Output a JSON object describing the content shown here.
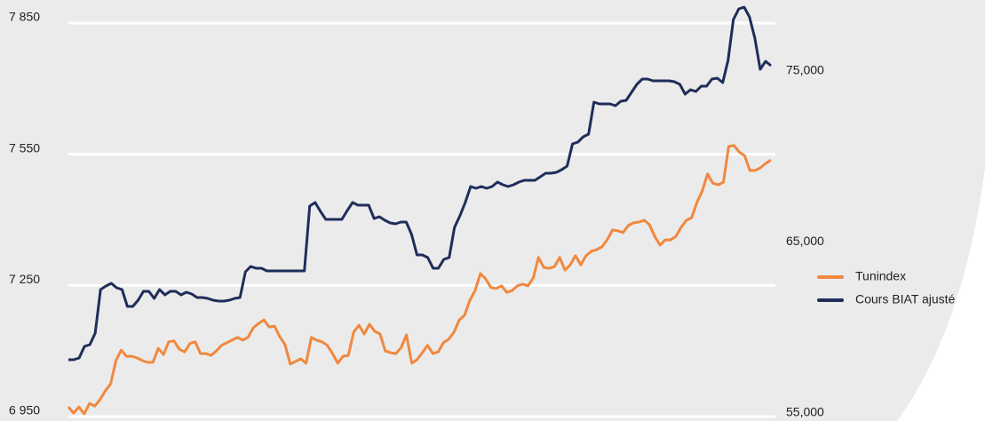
{
  "chart_data": {
    "type": "line",
    "ylim": [
      6950,
      7850
    ],
    "yticks": [
      {
        "value": 6950,
        "label": "6 950"
      },
      {
        "value": 7250,
        "label": "7 250"
      },
      {
        "value": 7550,
        "label": "7 550"
      },
      {
        "value": 7850,
        "label": "7 850"
      }
    ],
    "y2lim": [
      55000,
      78000
    ],
    "y2ticks": [
      {
        "value": 55000,
        "label": "55,000"
      },
      {
        "value": 65000,
        "label": "65,000"
      },
      {
        "value": 75000,
        "label": "75,000"
      }
    ],
    "grid": true,
    "legend": "right",
    "series": [
      {
        "name": "Tunindex",
        "color": "#f0883e",
        "values": [
          6972,
          6958,
          6972,
          6956,
          6980,
          6974,
          6989,
          7009,
          7025,
          7078,
          7102,
          7088,
          7088,
          7084,
          7078,
          7074,
          7074,
          7106,
          7092,
          7121,
          7123,
          7104,
          7098,
          7117,
          7121,
          7094,
          7094,
          7090,
          7100,
          7113,
          7119,
          7125,
          7131,
          7125,
          7131,
          7153,
          7163,
          7171,
          7155,
          7157,
          7133,
          7115,
          7070,
          7076,
          7082,
          7072,
          7131,
          7125,
          7121,
          7113,
          7094,
          7072,
          7088,
          7090,
          7143,
          7159,
          7139,
          7161,
          7145,
          7139,
          7100,
          7096,
          7094,
          7108,
          7137,
          7072,
          7080,
          7096,
          7113,
          7094,
          7098,
          7119,
          7127,
          7143,
          7171,
          7182,
          7216,
          7238,
          7277,
          7265,
          7245,
          7243,
          7249,
          7234,
          7238,
          7249,
          7253,
          7249,
          7267,
          7314,
          7291,
          7289,
          7293,
          7314,
          7285,
          7297,
          7318,
          7297,
          7318,
          7328,
          7332,
          7338,
          7354,
          7377,
          7375,
          7371,
          7387,
          7393,
          7395,
          7399,
          7389,
          7362,
          7342,
          7354,
          7354,
          7362,
          7383,
          7399,
          7405,
          7440,
          7466,
          7505,
          7484,
          7480,
          7486,
          7568,
          7570,
          7555,
          7547,
          7513,
          7513,
          7519,
          7529,
          7537
        ]
      },
      {
        "name": "Cours BIAT ajusté",
        "color": "#1f2d5a",
        "axis": "y2",
        "values": [
          58323,
          58323,
          58427,
          59102,
          59206,
          59880,
          62425,
          62632,
          62788,
          62528,
          62425,
          61438,
          61438,
          61802,
          62321,
          62321,
          61905,
          62425,
          62113,
          62321,
          62321,
          62113,
          62269,
          62165,
          61957,
          61957,
          61905,
          61802,
          61750,
          61750,
          61802,
          61905,
          61957,
          63463,
          63774,
          63671,
          63671,
          63515,
          63515,
          63515,
          63515,
          63515,
          63515,
          63515,
          63515,
          67305,
          67513,
          66994,
          66526,
          66526,
          66526,
          66526,
          67046,
          67513,
          67357,
          67357,
          67357,
          66578,
          66682,
          66474,
          66319,
          66267,
          66370,
          66370,
          65644,
          64449,
          64449,
          64294,
          63671,
          63671,
          64190,
          64294,
          66059,
          66734,
          67513,
          68447,
          68344,
          68447,
          68344,
          68447,
          68707,
          68551,
          68447,
          68551,
          68707,
          68811,
          68811,
          68811,
          69018,
          69226,
          69226,
          69278,
          69434,
          69641,
          70939,
          71043,
          71355,
          71511,
          73380,
          73276,
          73276,
          73276,
          73172,
          73432,
          73484,
          73951,
          74418,
          74730,
          74730,
          74626,
          74626,
          74626,
          74626,
          74574,
          74418,
          73847,
          74106,
          74003,
          74314,
          74314,
          74730,
          74782,
          74522,
          75820,
          78208,
          78831,
          78935,
          78364,
          77118,
          75300,
          75768,
          75508
        ]
      }
    ]
  }
}
